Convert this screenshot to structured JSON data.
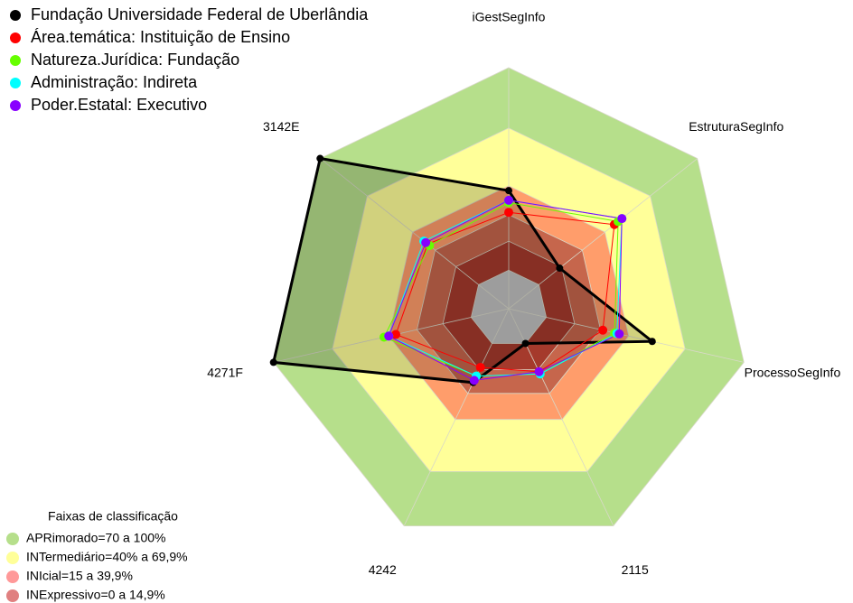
{
  "chart_data": {
    "type": "radar",
    "categories": [
      "iGestSegInfo",
      "EstruturaSegInfo",
      "ProcessoSegInfo",
      "2115",
      "4242",
      "4271F",
      "3142E"
    ],
    "rlim": [
      0,
      100
    ],
    "band_levels": [
      100,
      75,
      51,
      39,
      28,
      16
    ],
    "band_colors": [
      "#b6df8b",
      "#ffff99",
      "#ff9d6b",
      "#c6664c",
      "#a53a2c",
      "#c0c0c0"
    ],
    "series": [
      {
        "name": "Fundação Universidade Federal de Uberlândia",
        "color": "#000000",
        "values": [
          49,
          27,
          61,
          16,
          34,
          100,
          100
        ]
      },
      {
        "name": "Área.temática: Instituição de Ensino",
        "color": "#ff0000",
        "values": [
          40,
          56,
          40,
          29,
          27,
          48,
          43
        ]
      },
      {
        "name": "Natureza.Jurídica: Fundação",
        "color": "#66ff00",
        "values": [
          44,
          58,
          45,
          30,
          31,
          53,
          42
        ]
      },
      {
        "name": "Administração: Indireta",
        "color": "#00ffff",
        "values": [
          45,
          60,
          46,
          30,
          31,
          51,
          45
        ]
      },
      {
        "name": "Poder.Estatal: Executivo",
        "color": "#8800ff",
        "values": [
          45,
          60,
          47,
          29,
          33,
          51,
          44
        ]
      }
    ],
    "class_legend": {
      "title": "Faixas de classificação",
      "items": [
        {
          "label": "APRimorado=70 a 100%",
          "color": "#b6df8b"
        },
        {
          "label": "INTermediário=40% a 69,9%",
          "color": "#ffff99"
        },
        {
          "label": "INIcial=15 a 39,9%",
          "color": "#ff9999"
        },
        {
          "label": "INExpressivo=0 a 14,9%",
          "color": "#e08080"
        }
      ]
    }
  }
}
